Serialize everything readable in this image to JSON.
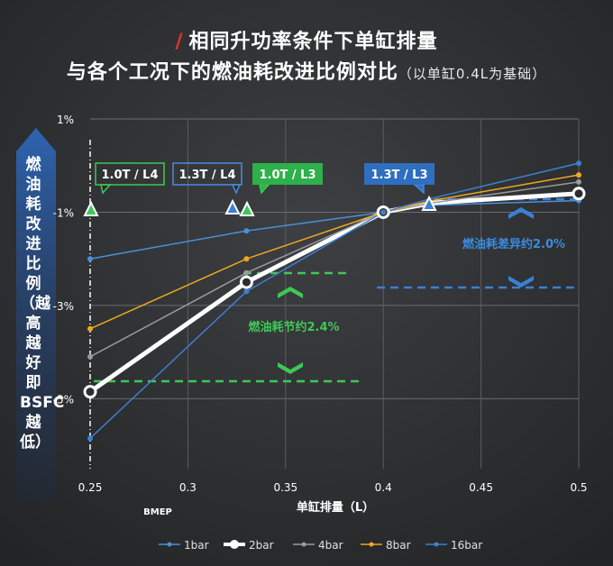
{
  "header": {
    "slash": "/",
    "title_line1": "相同升功率条件下单缸排量",
    "title_line2": "与各个工况下的燃油耗改进比例对比",
    "title_sub": "（以单缸0.4L为基础）"
  },
  "chart_data": {
    "type": "line",
    "xlabel": "单缸排量（L）",
    "x_sublabel": "BMEP",
    "ylabel_text": "燃油耗改进比例（越高越好 即 BSFC 越低）",
    "x_ticks": [
      "0.25",
      "0.3",
      "0.35",
      "0.4",
      "0.45",
      "0.5"
    ],
    "y_ticks": [
      "1%",
      "-1%",
      "-3%",
      "-5%"
    ],
    "xlim": [
      0.25,
      0.5
    ],
    "ylim": [
      -6.5,
      1.0
    ],
    "x": [
      0.25,
      0.33,
      0.4,
      0.425,
      0.5
    ],
    "series": [
      {
        "name": "1bar",
        "color": "#4a90d9",
        "values": [
          -2.0,
          -1.4,
          -1.0,
          -0.85,
          -0.75
        ]
      },
      {
        "name": "2bar",
        "color": "#ffffff",
        "values": [
          -4.85,
          -2.5,
          -1.0,
          -0.8,
          -0.6
        ]
      },
      {
        "name": "4bar",
        "color": "#9a9a9a",
        "values": [
          -4.1,
          -2.3,
          -1.0,
          -0.8,
          -0.35
        ]
      },
      {
        "name": "8bar",
        "color": "#f0a820",
        "values": [
          -3.5,
          -2.0,
          -1.0,
          -0.75,
          -0.2
        ]
      },
      {
        "name": "16bar",
        "color": "#3d80d0",
        "values": [
          -5.85,
          -2.7,
          -1.0,
          -0.7,
          0.05
        ]
      }
    ],
    "callouts": [
      {
        "text": "1.0T / L4",
        "style": "outline-green"
      },
      {
        "text": "1.3T / L4",
        "style": "outline-blue"
      },
      {
        "text": "1.0T / L3",
        "style": "fill-green"
      },
      {
        "text": "1.3T / L3",
        "style": "fill-blue"
      }
    ],
    "annotations": [
      {
        "text": "燃油耗节约2.4%",
        "color": "#3ec855"
      },
      {
        "text": "燃油耗差异约2.0%",
        "color": "#3b8be0"
      }
    ],
    "grid": true,
    "legend_position": "bottom"
  }
}
